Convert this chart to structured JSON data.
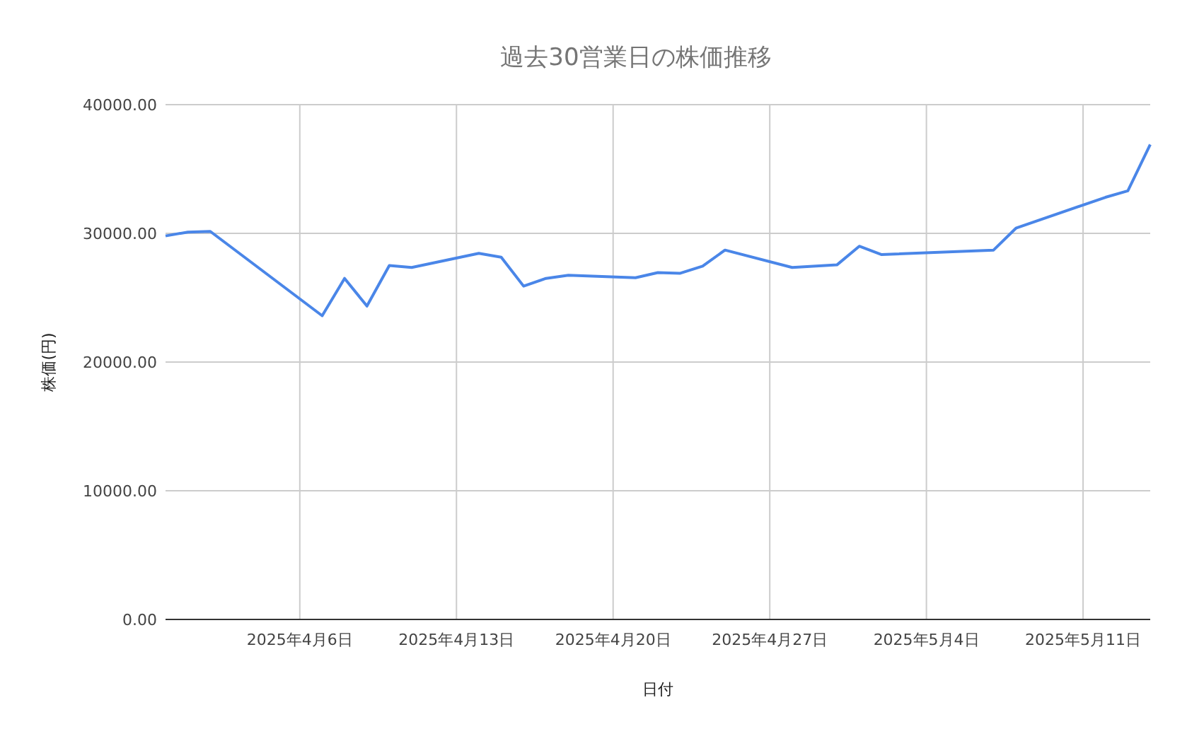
{
  "chart_data": {
    "type": "line",
    "title": "過去30営業日の株価推移",
    "xlabel": "日付",
    "ylabel": "株価(円)",
    "x": [
      "2025-03-31",
      "2025-04-01",
      "2025-04-02",
      "2025-04-07",
      "2025-04-08",
      "2025-04-09",
      "2025-04-10",
      "2025-04-11",
      "2025-04-14",
      "2025-04-15",
      "2025-04-16",
      "2025-04-17",
      "2025-04-18",
      "2025-04-21",
      "2025-04-22",
      "2025-04-23",
      "2025-04-24",
      "2025-04-25",
      "2025-04-28",
      "2025-04-30",
      "2025-05-01",
      "2025-05-02",
      "2025-05-07",
      "2025-05-08",
      "2025-05-12",
      "2025-05-13",
      "2025-05-14"
    ],
    "series": [
      {
        "color": "#4a86e8",
        "values": [
          29800,
          30100,
          30150,
          23600,
          26500,
          24350,
          27500,
          27350,
          28450,
          28150,
          25900,
          26500,
          26750,
          26550,
          26950,
          26900,
          27450,
          28700,
          27350,
          27550,
          29000,
          28350,
          28700,
          30400,
          32800,
          33300,
          36900
        ]
      }
    ],
    "xlim": [
      "2025-03-31",
      "2025-05-14"
    ],
    "xticks": [
      {
        "value": "2025-04-06",
        "label": "2025年4月6日"
      },
      {
        "value": "2025-04-13",
        "label": "2025年4月13日"
      },
      {
        "value": "2025-04-20",
        "label": "2025年4月20日"
      },
      {
        "value": "2025-04-27",
        "label": "2025年4月27日"
      },
      {
        "value": "2025-05-04",
        "label": "2025年5月4日"
      },
      {
        "value": "2025-05-11",
        "label": "2025年5月11日"
      }
    ],
    "ylim": [
      0,
      40000
    ],
    "yticks": [
      {
        "value": 0,
        "label": "0.00"
      },
      {
        "value": 10000,
        "label": "10000.00"
      },
      {
        "value": 20000,
        "label": "20000.00"
      },
      {
        "value": 30000,
        "label": "30000.00"
      },
      {
        "value": 40000,
        "label": "40000.00"
      }
    ],
    "grid": true,
    "marker": "none",
    "line_style": "solid"
  }
}
